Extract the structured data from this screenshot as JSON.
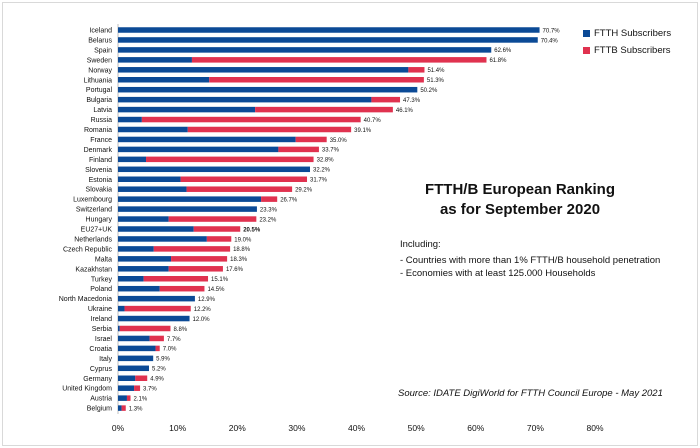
{
  "chart_data": {
    "type": "bar",
    "orientation": "horizontal",
    "stacked": true,
    "title": "FTTH/B European Ranking as for September 2020",
    "title_lines": [
      "FTTH/B European Ranking",
      "as for September 2020"
    ],
    "notes": {
      "heading": "Including:",
      "items": [
        "- Countries with more than 1% FTTH/B household penetration",
        "- Economies with at least 125.000 Households"
      ]
    },
    "source": "Source: IDATE DigiWorld for FTTH Council Europe - May 2021",
    "categories": [
      "Iceland",
      "Belarus",
      "Spain",
      "Sweden",
      "Norway",
      "Lithuania",
      "Portugal",
      "Bulgaria",
      "Latvia",
      "Russia",
      "Romania",
      "France",
      "Denmark",
      "Finland",
      "Slovenia",
      "Estonia",
      "Slovakia",
      "Luxembourg",
      "Switzerland",
      "Hungary",
      "EU27+UK",
      "Netherlands",
      "Czech Republic",
      "Malta",
      "Kazakhstan",
      "Turkey",
      "Poland",
      "North Macedonia",
      "Ukraine",
      "Ireland",
      "Serbia",
      "Israel",
      "Croatia",
      "Italy",
      "Cyprus",
      "Germany",
      "United Kingdom",
      "Austria",
      "Belgium"
    ],
    "totals": [
      70.7,
      70.4,
      62.6,
      61.8,
      51.4,
      51.3,
      50.2,
      47.3,
      46.1,
      40.7,
      39.1,
      35.0,
      33.7,
      32.8,
      32.2,
      31.7,
      29.2,
      26.7,
      23.3,
      23.2,
      20.5,
      19.0,
      18.8,
      18.3,
      17.6,
      15.1,
      14.5,
      12.9,
      12.2,
      12.0,
      8.8,
      7.7,
      7.0,
      5.9,
      5.2,
      4.9,
      3.7,
      2.1,
      1.3
    ],
    "total_labels": [
      "70.7%",
      "70.4%",
      "62.6%",
      "61.8%",
      "51.4%",
      "51.3%",
      "50.2%",
      "47.3%",
      "46.1%",
      "40.7%",
      "39.1%",
      "35.0%",
      "33.7%",
      "32.8%",
      "32.2%",
      "31.7%",
      "29.2%",
      "26.7%",
      "23.3%",
      "23.2%",
      "20.5%",
      "19.0%",
      "18.8%",
      "18.3%",
      "17.6%",
      "15.1%",
      "14.5%",
      "12.9%",
      "12.2%",
      "12.0%",
      "8.8%",
      "7.7%",
      "7.0%",
      "5.9%",
      "5.2%",
      "4.9%",
      "3.7%",
      "2.1%",
      "1.3%"
    ],
    "highlight": "EU27+UK",
    "series": [
      {
        "name": "FTTH Subscribers",
        "color": "#0b4a96",
        "values": [
          70.7,
          70.4,
          62.6,
          12.4,
          48.7,
          15.3,
          50.2,
          42.5,
          23.0,
          4.0,
          11.7,
          29.8,
          26.9,
          4.7,
          32.2,
          10.5,
          11.5,
          24.0,
          23.3,
          8.5,
          12.7,
          14.9,
          6.0,
          8.9,
          8.5,
          4.3,
          7.0,
          12.9,
          1.1,
          12.0,
          0.3,
          5.3,
          6.3,
          5.9,
          5.2,
          2.9,
          2.7,
          1.5,
          0.6
        ]
      },
      {
        "name": "FTTB Subscribers",
        "color": "#e0324f",
        "values": [
          0,
          0,
          0,
          49.4,
          2.7,
          36.0,
          0,
          4.8,
          23.1,
          36.7,
          27.4,
          5.2,
          6.8,
          28.1,
          0,
          21.2,
          17.7,
          2.7,
          0,
          14.7,
          7.8,
          4.1,
          12.8,
          9.4,
          9.1,
          10.8,
          7.5,
          0,
          11.1,
          0,
          8.5,
          2.4,
          0.7,
          0,
          0,
          2.0,
          1.0,
          0.6,
          0.7
        ]
      }
    ],
    "xlim": [
      0,
      80
    ],
    "x_ticks": [
      "0%",
      "10%",
      "20%",
      "30%",
      "40%",
      "50%",
      "60%",
      "70%",
      "80%"
    ],
    "grid": false,
    "legend": "top-right"
  }
}
